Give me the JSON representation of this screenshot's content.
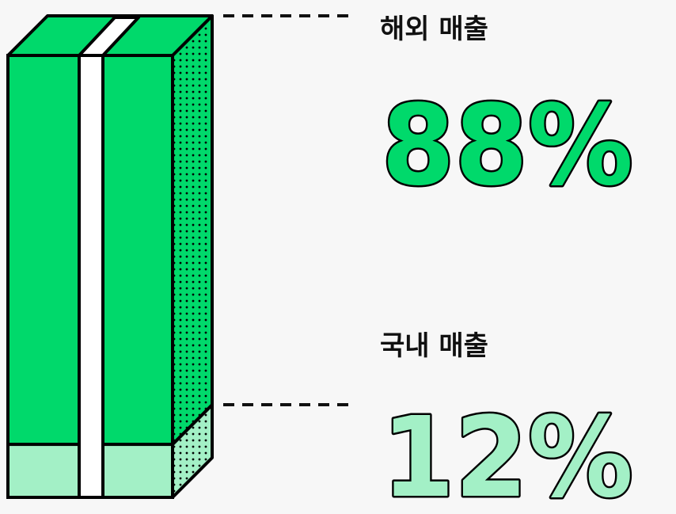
{
  "chart_data": {
    "type": "stacked_bar",
    "series": [
      {
        "name": "해외 매출",
        "color": "#00d96b",
        "values": [
          88
        ],
        "value_labels": [
          "88%"
        ]
      },
      {
        "name": "국내 매출",
        "color": "#a3f0c6",
        "values": [
          12
        ],
        "value_labels": [
          "12%"
        ]
      }
    ]
  }
}
